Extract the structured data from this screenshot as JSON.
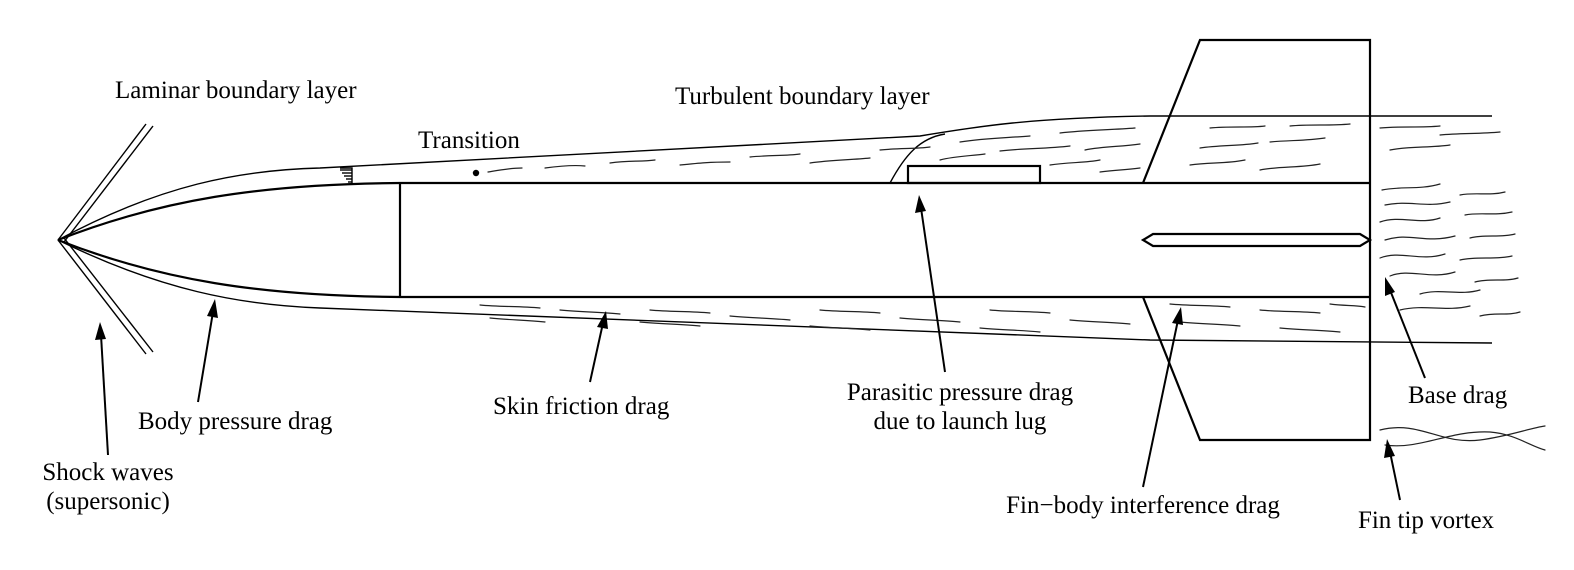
{
  "labels": {
    "laminar": "Laminar boundary layer",
    "turbulent": "Turbulent boundary layer",
    "transition": "Transition",
    "body_pressure": "Body pressure drag",
    "skin_friction": "Skin friction drag",
    "parasitic_line1": "Parasitic pressure drag",
    "parasitic_line2": "due to launch lug",
    "base_drag": "Base drag",
    "shock_line1": "Shock waves",
    "shock_line2": "(supersonic)",
    "fin_body": "Fin−body interference drag",
    "fin_tip": "Fin tip vortex"
  }
}
